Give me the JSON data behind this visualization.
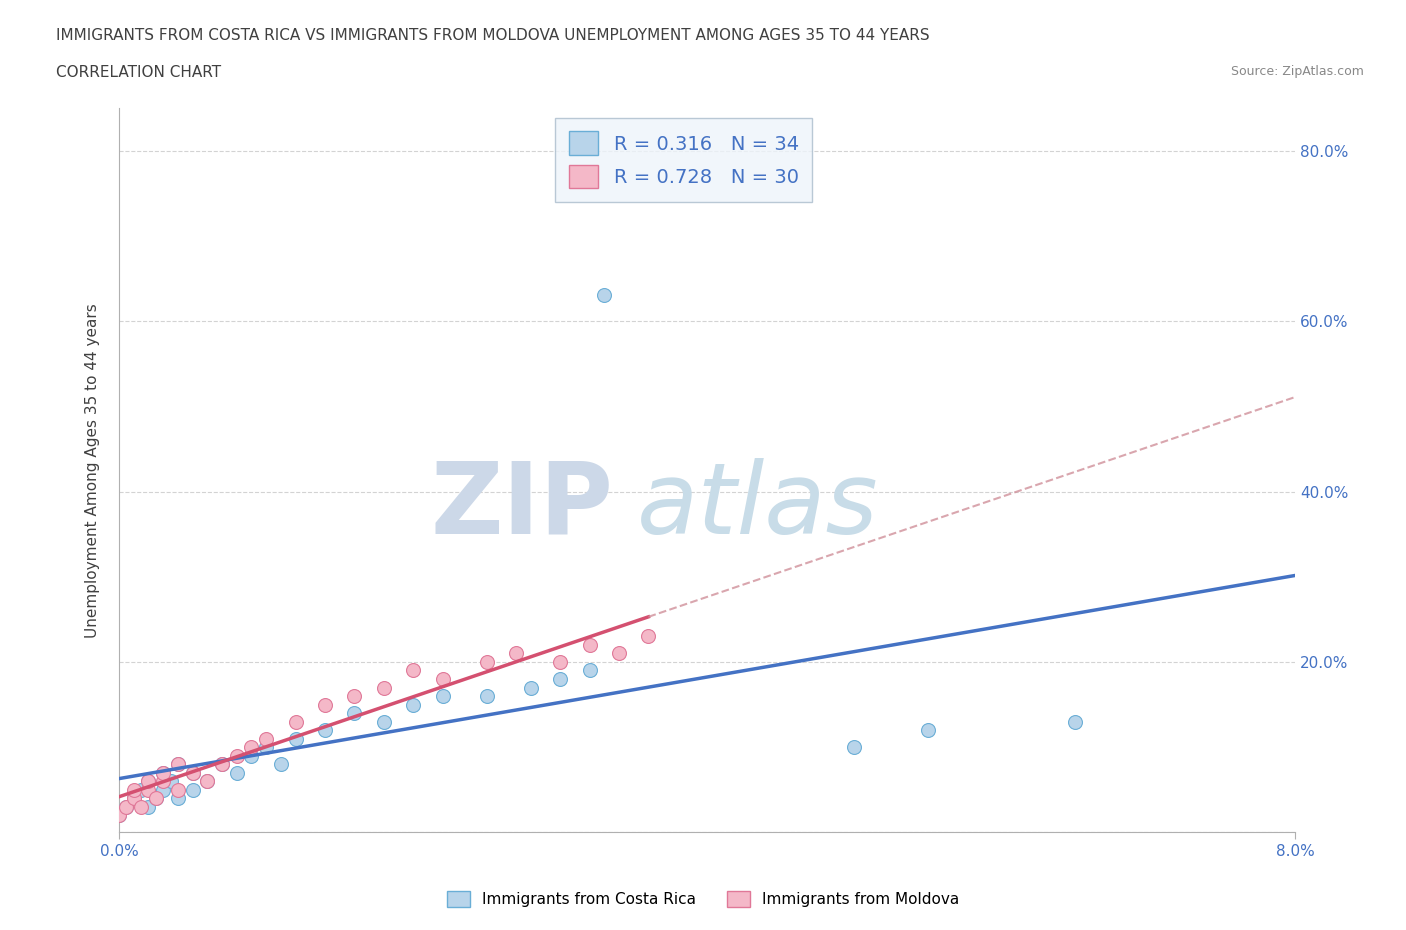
{
  "title_line1": "IMMIGRANTS FROM COSTA RICA VS IMMIGRANTS FROM MOLDOVA UNEMPLOYMENT AMONG AGES 35 TO 44 YEARS",
  "title_line2": "CORRELATION CHART",
  "source_text": "Source: ZipAtlas.com",
  "ylabel": "Unemployment Among Ages 35 to 44 years",
  "xlim": [
    0.0,
    0.08
  ],
  "ylim": [
    0.0,
    0.85
  ],
  "costa_rica_R": 0.316,
  "costa_rica_N": 34,
  "moldova_R": 0.728,
  "moldova_N": 30,
  "costa_rica_color": "#b8d4ea",
  "costa_rica_edge": "#6aaed6",
  "moldova_color": "#f4b8c8",
  "moldova_edge": "#e07898",
  "regression_costa_rica_color": "#4472c4",
  "regression_moldova_color": "#d45070",
  "regression_moldova_dash_color": "#d0909a",
  "watermark_color": "#d8e4f0",
  "background_color": "#ffffff",
  "grid_color": "#c8c8c8",
  "legend_box_color": "#eef4fa",
  "legend_box_edge": "#aabccc",
  "title_fontsize": 11,
  "axis_label_fontsize": 11,
  "tick_fontsize": 11,
  "legend_fontsize": 14,
  "cr_x": [
    0.0,
    0.0005,
    0.001,
    0.0015,
    0.002,
    0.002,
    0.0025,
    0.003,
    0.003,
    0.0035,
    0.004,
    0.004,
    0.005,
    0.005,
    0.006,
    0.007,
    0.008,
    0.009,
    0.01,
    0.011,
    0.012,
    0.014,
    0.016,
    0.018,
    0.02,
    0.022,
    0.025,
    0.028,
    0.03,
    0.032,
    0.05,
    0.055,
    0.065,
    0.033
  ],
  "cr_y": [
    0.02,
    0.03,
    0.04,
    0.05,
    0.03,
    0.06,
    0.04,
    0.05,
    0.07,
    0.06,
    0.08,
    0.04,
    0.05,
    0.07,
    0.06,
    0.08,
    0.07,
    0.09,
    0.1,
    0.08,
    0.11,
    0.12,
    0.14,
    0.13,
    0.15,
    0.16,
    0.16,
    0.17,
    0.18,
    0.19,
    0.1,
    0.12,
    0.13,
    0.63
  ],
  "md_x": [
    0.0,
    0.0005,
    0.001,
    0.001,
    0.0015,
    0.002,
    0.002,
    0.0025,
    0.003,
    0.003,
    0.004,
    0.004,
    0.005,
    0.006,
    0.007,
    0.008,
    0.009,
    0.01,
    0.012,
    0.014,
    0.016,
    0.018,
    0.02,
    0.022,
    0.025,
    0.027,
    0.03,
    0.032,
    0.034,
    0.036
  ],
  "md_y": [
    0.02,
    0.03,
    0.04,
    0.05,
    0.03,
    0.05,
    0.06,
    0.04,
    0.06,
    0.07,
    0.05,
    0.08,
    0.07,
    0.06,
    0.08,
    0.09,
    0.1,
    0.11,
    0.13,
    0.15,
    0.16,
    0.17,
    0.19,
    0.18,
    0.2,
    0.21,
    0.2,
    0.22,
    0.21,
    0.23
  ]
}
